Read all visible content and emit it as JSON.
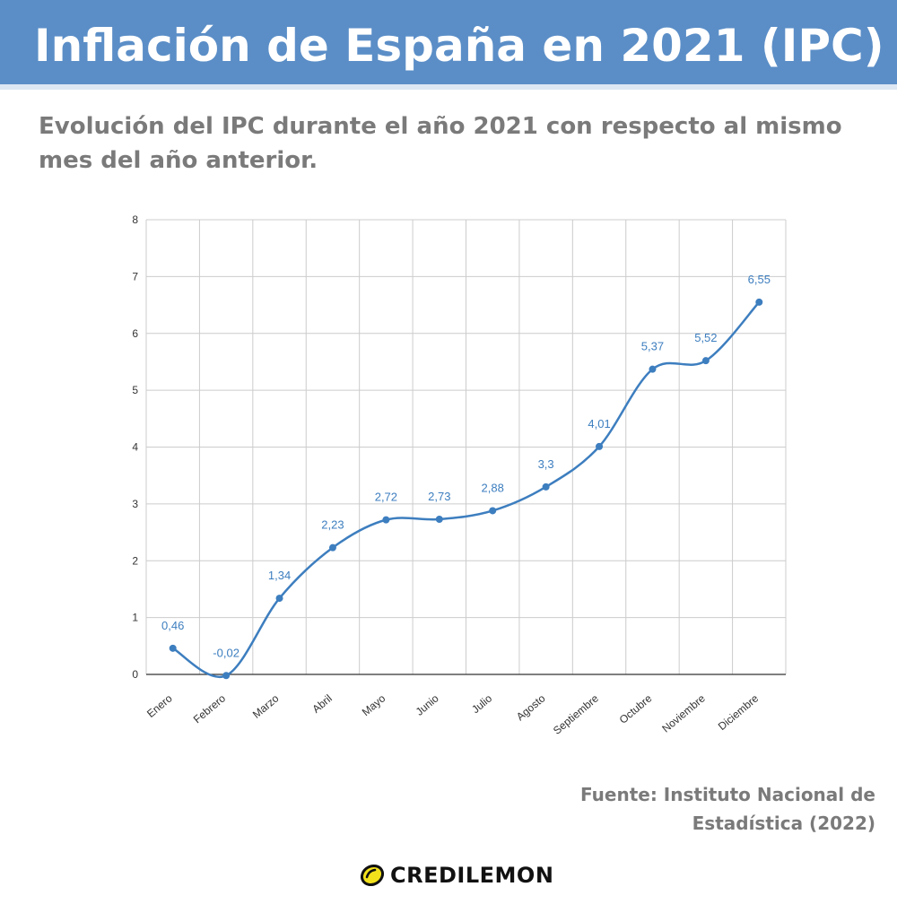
{
  "header": {
    "title": "Inflación de España en 2021 (IPC)",
    "subtitle": "Evolución del IPC durante el año 2021 con respecto al mismo mes del año anterior."
  },
  "source": "Fuente: Instituto Nacional de Estadística (2022)",
  "brand": {
    "name": "CREDILEMON"
  },
  "colors": {
    "header_bg": "#5b8ec7",
    "series": "#3d7ebf",
    "grid": "#cccccc",
    "text_gray": "#7a7a7a",
    "logo_yellow": "#f3e11c"
  },
  "chart_data": {
    "type": "line",
    "title": "",
    "xlabel": "",
    "ylabel": "",
    "categories": [
      "Enero",
      "Febrero",
      "Marzo",
      "Abril",
      "Mayo",
      "Junio",
      "Julio",
      "Agosto",
      "Septiembre",
      "Octubre",
      "Noviembre",
      "Diciembre"
    ],
    "values": [
      0.46,
      -0.02,
      1.34,
      2.23,
      2.72,
      2.73,
      2.88,
      3.3,
      4.01,
      5.37,
      5.52,
      6.55
    ],
    "value_labels": [
      "0,46",
      "-0,02",
      "1,34",
      "2,23",
      "2,72",
      "2,73",
      "2,88",
      "3,3",
      "4,01",
      "5,37",
      "5,52",
      "6,55"
    ],
    "ylim": [
      0,
      8
    ],
    "yticks": [
      0,
      1,
      2,
      3,
      4,
      5,
      6,
      7,
      8
    ],
    "grid": true,
    "smooth": true
  }
}
